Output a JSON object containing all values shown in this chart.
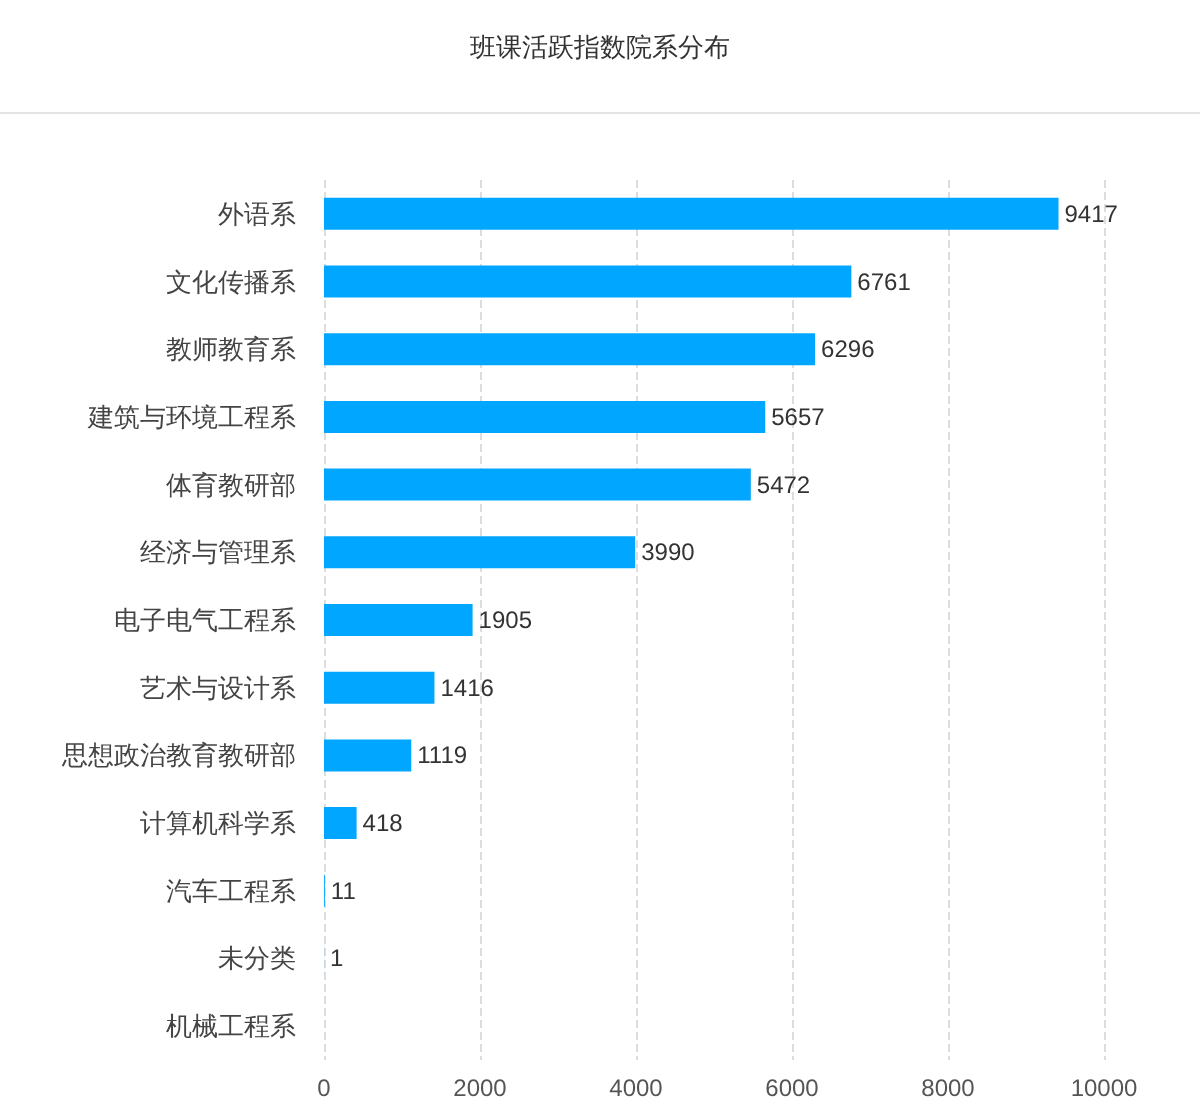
{
  "chart_data": {
    "type": "bar",
    "orientation": "horizontal",
    "title": "班课活跃指数院系分布",
    "categories": [
      "外语系",
      "文化传播系",
      "教师教育系",
      "建筑与环境工程系",
      "体育教研部",
      "经济与管理系",
      "电子电气工程系",
      "艺术与设计系",
      "思想政治教育教研部",
      "计算机科学系",
      "汽车工程系",
      "未分类",
      "机械工程系"
    ],
    "values": [
      9417,
      6761,
      6296,
      5657,
      5472,
      3990,
      1905,
      1416,
      1119,
      418,
      11,
      1,
      null
    ],
    "color": "#00a6ff",
    "xlim": [
      0,
      10000
    ],
    "xticks": [
      0,
      2000,
      4000,
      6000,
      8000,
      10000
    ],
    "grid": "x",
    "data_labels": true
  }
}
